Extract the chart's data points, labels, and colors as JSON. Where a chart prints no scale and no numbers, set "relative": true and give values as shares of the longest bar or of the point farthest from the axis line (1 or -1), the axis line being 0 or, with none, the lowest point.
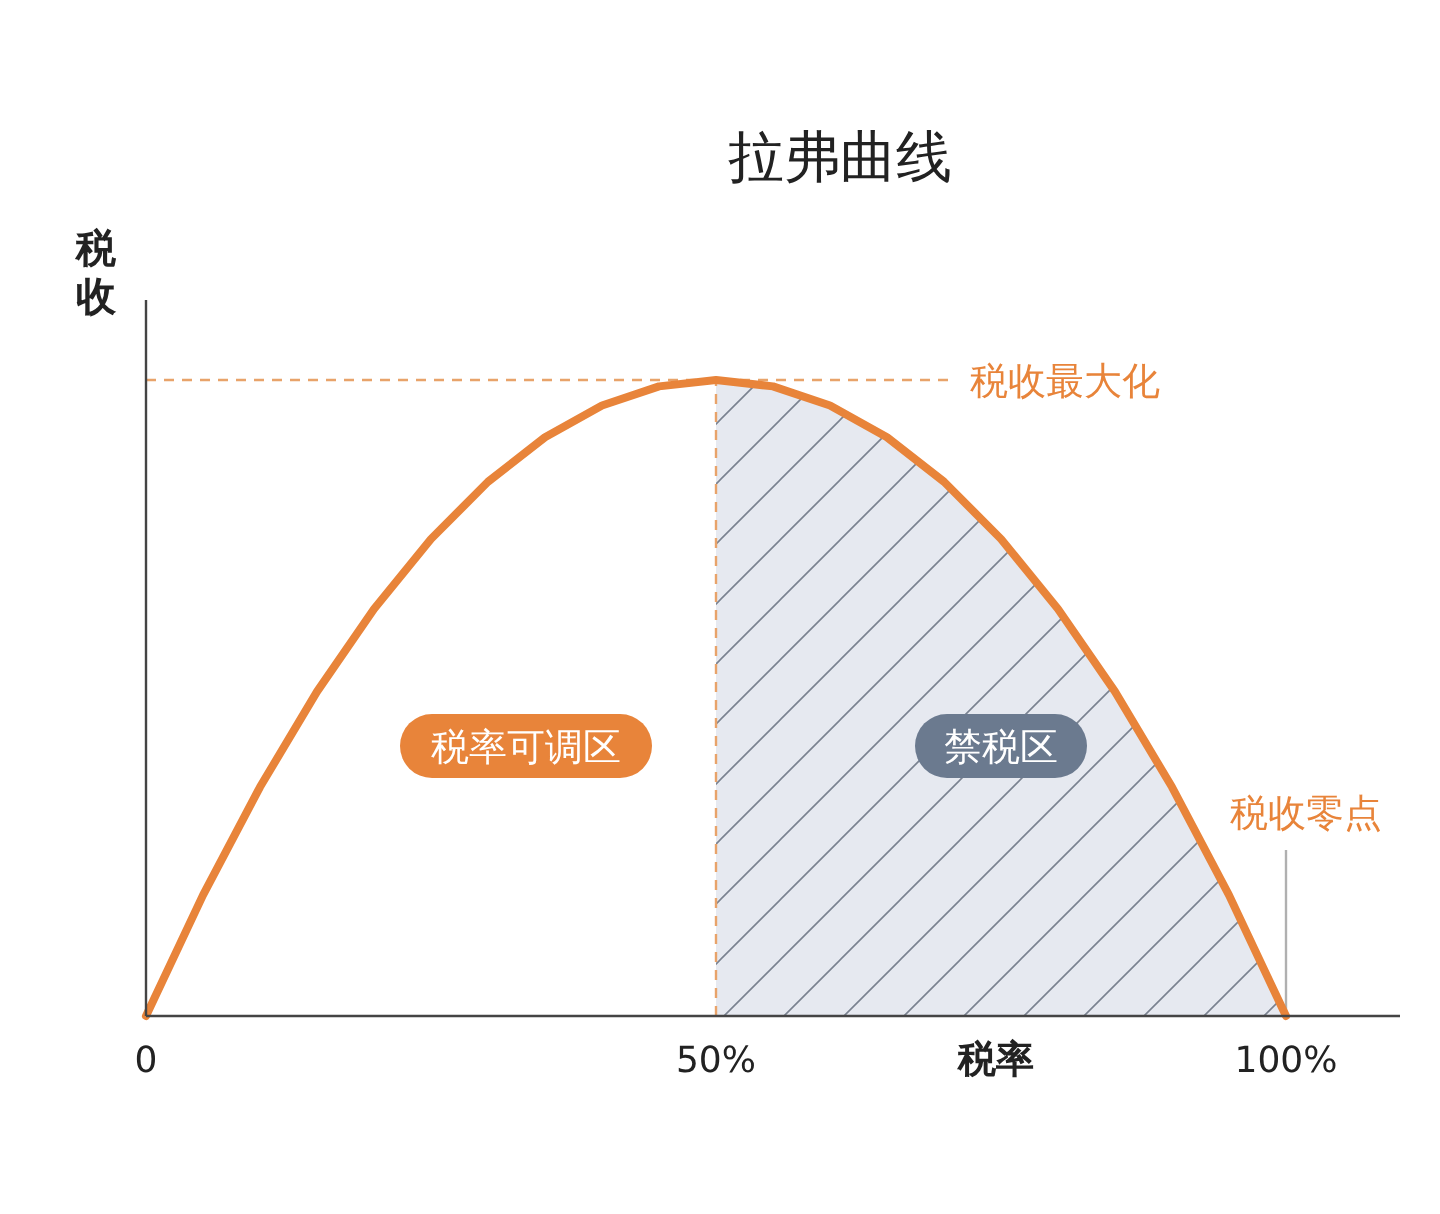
{
  "chart_data": {
    "type": "line",
    "title": "拉弗曲线",
    "xlabel": "税率",
    "ylabel": "税收",
    "relative": true,
    "x": [
      0,
      5,
      10,
      15,
      20,
      25,
      30,
      35,
      40,
      45,
      50,
      55,
      60,
      65,
      70,
      75,
      80,
      85,
      90,
      95,
      100
    ],
    "series": [
      {
        "color": "#e8843a",
        "values": [
          0,
          0.19,
          0.36,
          0.51,
          0.64,
          0.75,
          0.84,
          0.91,
          0.96,
          0.99,
          1,
          0.99,
          0.96,
          0.91,
          0.84,
          0.75,
          0.64,
          0.51,
          0.36,
          0.19,
          0
        ]
      }
    ],
    "xlim": [
      0,
      110
    ],
    "xticks": [
      {
        "value": 0,
        "label": "0"
      },
      {
        "value": 50,
        "label": "50%"
      },
      {
        "value": 100,
        "label": "100%"
      }
    ],
    "ref_lines": [
      {
        "axis": "y",
        "value": 1,
        "label": "税收最大化",
        "line_style": "dashed",
        "color": "#e8a36a"
      },
      {
        "axis": "x",
        "value": 50,
        "line_style": "dashed",
        "color": "#e8a36a"
      },
      {
        "axis": "x",
        "value": 100,
        "label": "税收零点",
        "line_style": "solid",
        "color": "#b0b0b0"
      }
    ],
    "bands": [
      {
        "axis": "x",
        "from": 50,
        "to": 100,
        "label": "禁税区",
        "color": "#6b7a8f"
      }
    ],
    "annotations": [
      "税率可调区"
    ],
    "line_style": "solid"
  }
}
